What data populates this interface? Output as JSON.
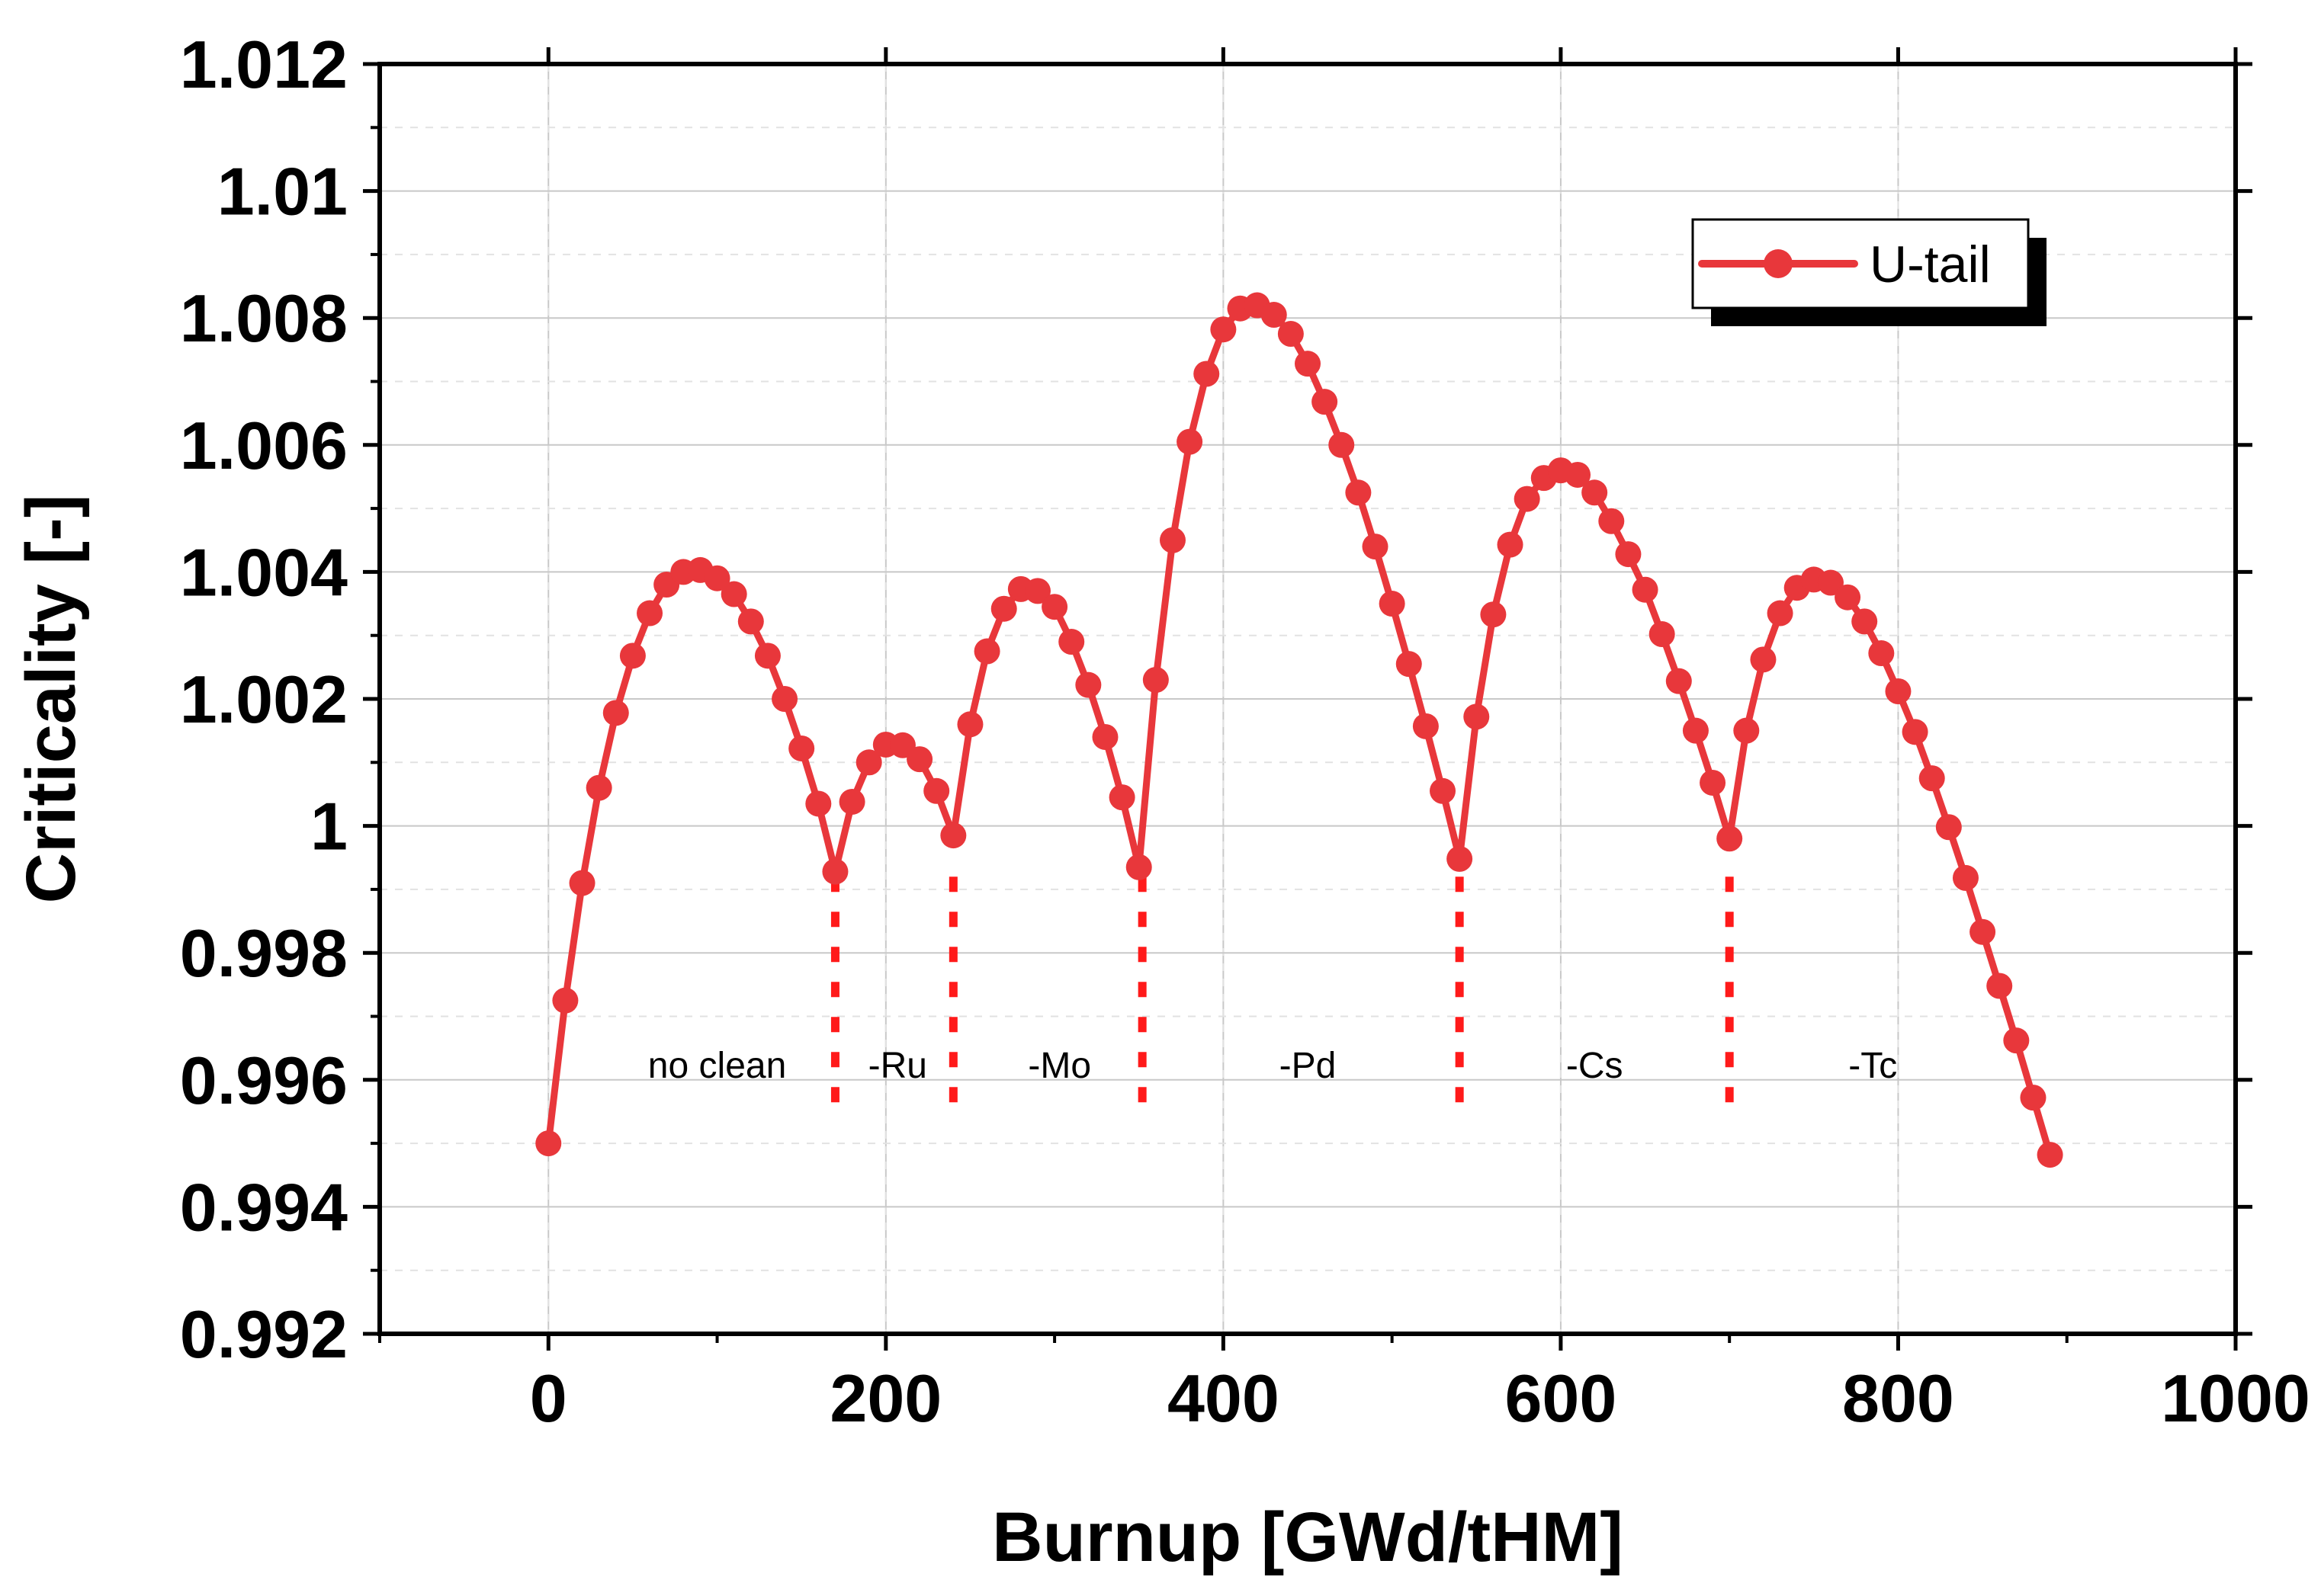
{
  "chart_data": {
    "type": "line",
    "xlabel": "Burnup [GWd/tHM]",
    "ylabel": "Criticality [-]",
    "xlim": [
      -100,
      1000
    ],
    "ylim": [
      0.992,
      1.012
    ],
    "x_ticks": [
      0,
      200,
      400,
      600,
      800,
      1000
    ],
    "x_tick_labels": [
      "0",
      "200",
      "400",
      "600",
      "800",
      "1000"
    ],
    "y_ticks": [
      0.992,
      0.994,
      0.996,
      0.998,
      1.0,
      1.002,
      1.004,
      1.006,
      1.008,
      1.01,
      1.012
    ],
    "y_tick_labels": [
      "0.992",
      "0.994",
      "0.996",
      "0.998",
      "1",
      "1.002",
      "1.004",
      "1.006",
      "1.008",
      "1.01",
      "1.012"
    ],
    "grid": true,
    "legend_position": "top-right",
    "series": [
      {
        "name": "U-tail",
        "color": "#e8373b",
        "x": [
          0,
          10,
          20,
          30,
          40,
          50,
          60,
          70,
          80,
          90,
          100,
          110,
          120,
          130,
          140,
          150,
          160,
          170,
          180,
          190,
          200,
          210,
          220,
          230,
          240,
          250,
          260,
          270,
          280,
          290,
          300,
          310,
          320,
          330,
          340,
          350,
          360,
          370,
          380,
          390,
          400,
          410,
          420,
          430,
          440,
          450,
          460,
          470,
          480,
          490,
          500,
          510,
          520,
          530,
          540,
          550,
          560,
          570,
          580,
          590,
          600,
          610,
          620,
          630,
          640,
          650,
          660,
          670,
          680,
          690,
          700,
          710,
          720,
          730,
          740,
          750,
          760,
          770,
          780,
          790,
          800,
          810,
          820,
          830,
          840,
          850,
          860,
          870,
          880,
          890
        ],
        "y": [
          0.995,
          0.99725,
          0.9991,
          1.0006,
          1.00178,
          1.00268,
          1.00335,
          1.0038,
          1.004,
          1.00403,
          1.0039,
          1.00365,
          1.00322,
          1.00268,
          1.002,
          1.00122,
          1.00035,
          0.99928,
          1.00038,
          1.001,
          1.00128,
          1.00127,
          1.00105,
          1.00055,
          0.99985,
          1.0016,
          1.00275,
          1.00342,
          1.00373,
          1.0037,
          1.00345,
          1.0029,
          1.00222,
          1.0014,
          1.00045,
          0.99935,
          1.0023,
          1.0045,
          1.00605,
          1.00712,
          1.00782,
          1.00815,
          1.0082,
          1.00805,
          1.00775,
          1.00728,
          1.00668,
          1.006,
          1.00525,
          1.0044,
          1.0035,
          1.00255,
          1.00157,
          1.00055,
          0.99948,
          1.00172,
          1.00333,
          1.00443,
          1.00515,
          1.00548,
          1.0056,
          1.00553,
          1.00525,
          1.0048,
          1.00428,
          1.00372,
          1.00302,
          1.00228,
          1.0015,
          1.00068,
          0.9998,
          1.0015,
          1.00262,
          1.00335,
          1.00375,
          1.00388,
          1.00383,
          1.0036,
          1.00322,
          1.00272,
          1.00212,
          1.00148,
          1.00075,
          0.99998,
          0.99918,
          0.99833,
          0.99748,
          0.99662,
          0.99572,
          0.99482
        ]
      }
    ],
    "separators": [
      170,
      240,
      352,
      540,
      700
    ],
    "regions": [
      {
        "label": "no clean",
        "x": 100
      },
      {
        "label": "-Ru",
        "x": 207
      },
      {
        "label": "-Mo",
        "x": 303
      },
      {
        "label": "-Pd",
        "x": 450
      },
      {
        "label": "-Cs",
        "x": 620
      },
      {
        "label": "-Tc",
        "x": 785
      }
    ],
    "regions_y": 0.99625,
    "separator_y_range": [
      0.9955,
      0.9992
    ]
  }
}
